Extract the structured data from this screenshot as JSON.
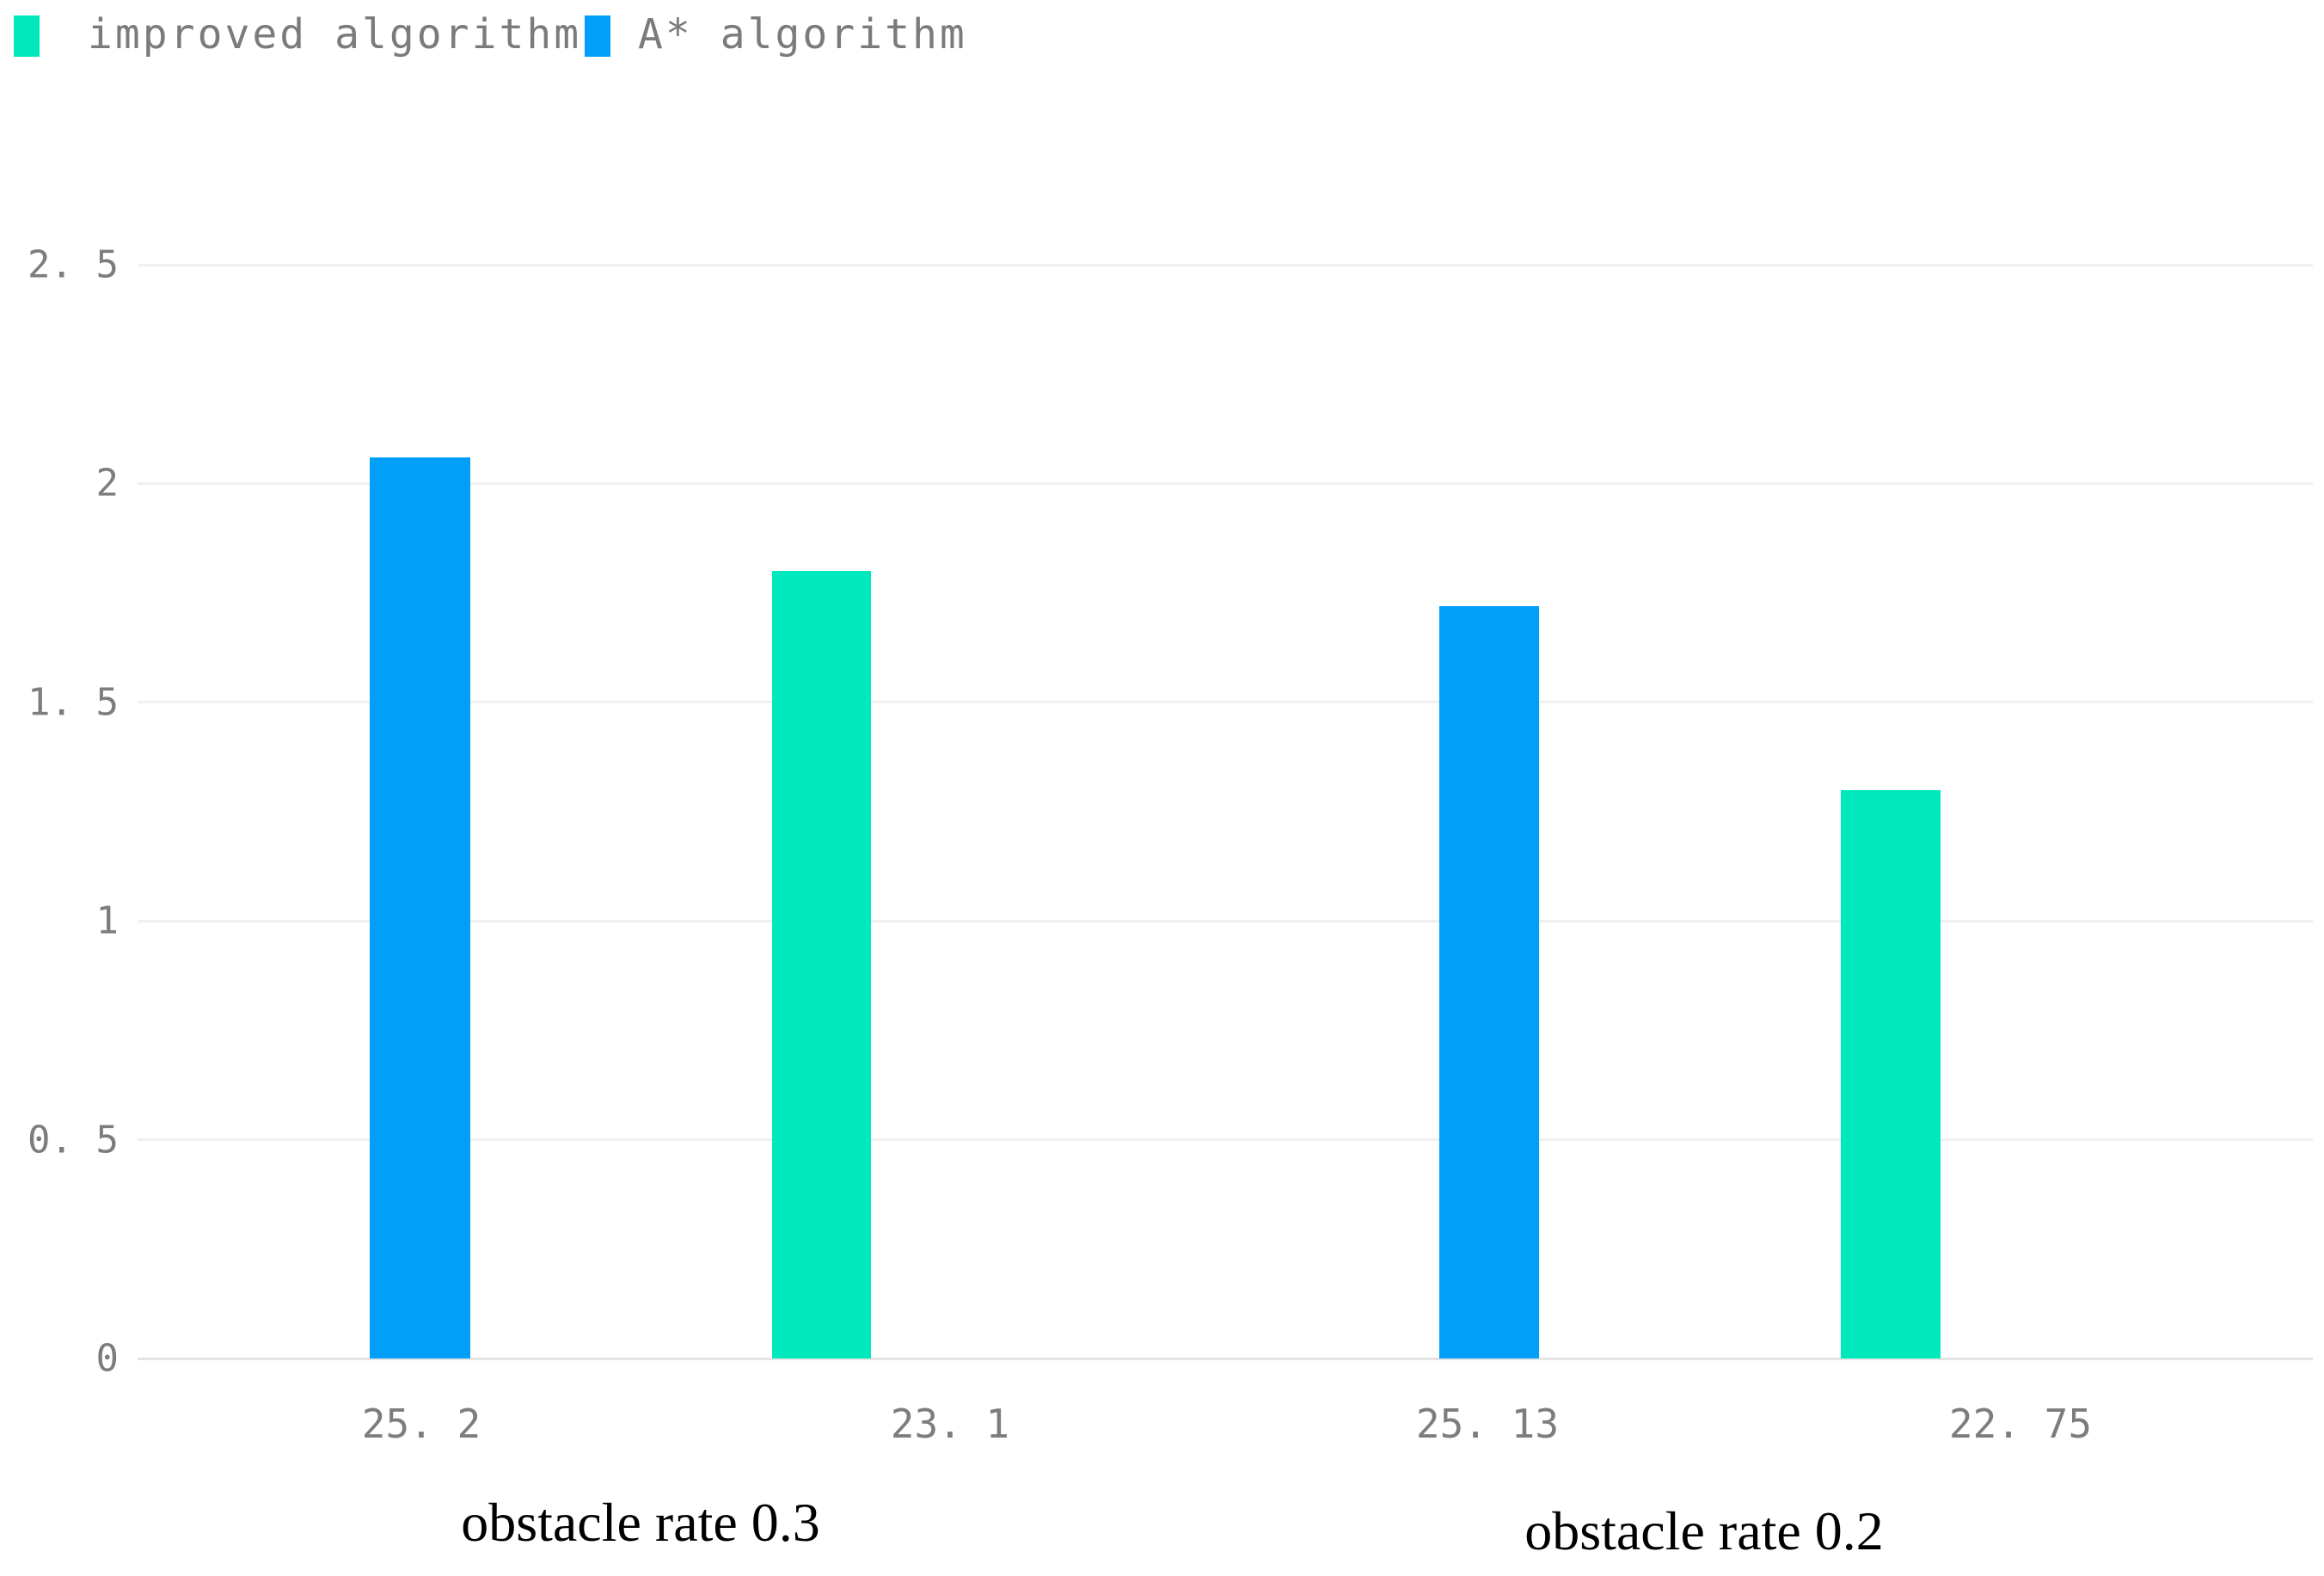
{
  "chart_data": {
    "type": "bar",
    "title": "",
    "legend_position": "top-left",
    "grid": true,
    "ylim": [
      0,
      2.5
    ],
    "y_ticks": [
      {
        "label": "2. 5",
        "value": 2.5
      },
      {
        "label": "2",
        "value": 2.0
      },
      {
        "label": "1. 5",
        "value": 1.5
      },
      {
        "label": "1",
        "value": 1.0
      },
      {
        "label": "0. 5",
        "value": 0.5
      },
      {
        "label": "0",
        "value": 0.0
      }
    ],
    "legend": [
      {
        "name": "improved algorithm",
        "color": "#00e9bd"
      },
      {
        "name": "A* algorithm",
        "color": "#029ffa"
      }
    ],
    "groups": [
      "obstacle rate 0.3",
      "obstacle rate 0.2"
    ],
    "bars": [
      {
        "series": "A* algorithm",
        "group": "obstacle rate 0.3",
        "value": 2.06,
        "axis_label": "25. 2",
        "color": "#029ffa"
      },
      {
        "series": "improved algorithm",
        "group": "obstacle rate 0.3",
        "value": 1.8,
        "axis_label": "23. 1",
        "color": "#00e9bd"
      },
      {
        "series": "A* algorithm",
        "group": "obstacle rate 0.2",
        "value": 1.72,
        "axis_label": "25. 13",
        "color": "#029ffa"
      },
      {
        "series": "improved algorithm",
        "group": "obstacle rate 0.2",
        "value": 1.3,
        "axis_label": "22. 75",
        "color": "#00e9bd"
      }
    ],
    "colors": {
      "grid": "#f0f0f0",
      "axis_line": "#e4e4e4",
      "tick_text": "#7d7d7d",
      "legend_text": "#7b7b7b",
      "group_label_text": "#000000"
    }
  }
}
